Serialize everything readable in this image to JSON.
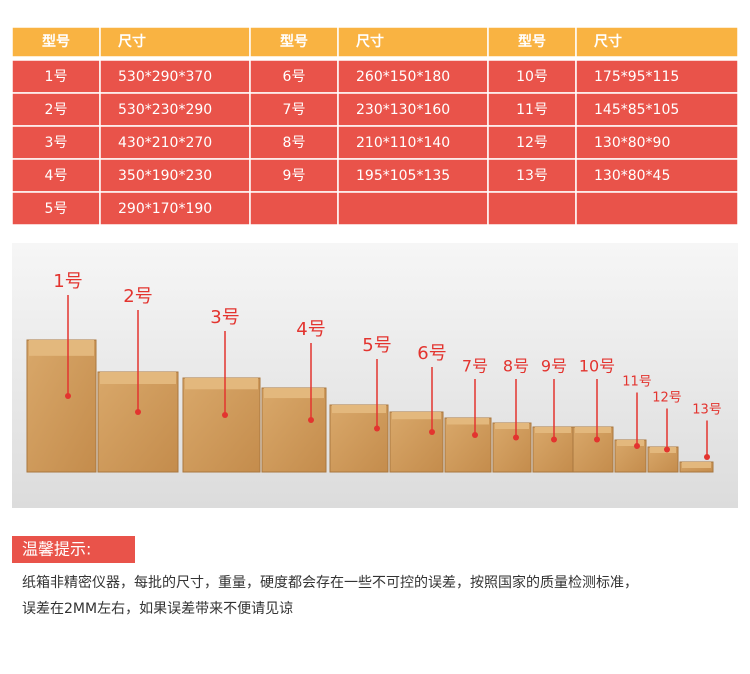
{
  "table": {
    "headers": [
      "型号",
      "尺寸",
      "型号",
      "尺寸",
      "型号",
      "尺寸"
    ],
    "rows": [
      [
        "1号",
        "530*290*370",
        "6号",
        "260*150*180",
        "10号",
        "175*95*115"
      ],
      [
        "2号",
        "530*230*290",
        "7号",
        "230*130*160",
        "11号",
        "145*85*105"
      ],
      [
        "3号",
        "430*210*270",
        "8号",
        "210*110*140",
        "12号",
        "130*80*90"
      ],
      [
        "4号",
        "350*190*230",
        "9号",
        "195*105*135",
        "13号",
        "130*80*45"
      ],
      [
        "5号",
        "290*170*190"
      ]
    ]
  },
  "photo": {
    "labels": [
      "1号",
      "2号",
      "3号",
      "4号",
      "5号",
      "6号",
      "7号",
      "8号",
      "9号",
      "10号",
      "11号",
      "12号",
      "13号"
    ]
  },
  "tip": {
    "title": "温馨提示:",
    "lines": [
      "纸箱非精密仪器，每批的尺寸，重量，硬度都会存在一些不可控的误差，按照国家的质量检测标准，",
      "误差在2MM左右，如果误差带来不便请见谅"
    ]
  }
}
